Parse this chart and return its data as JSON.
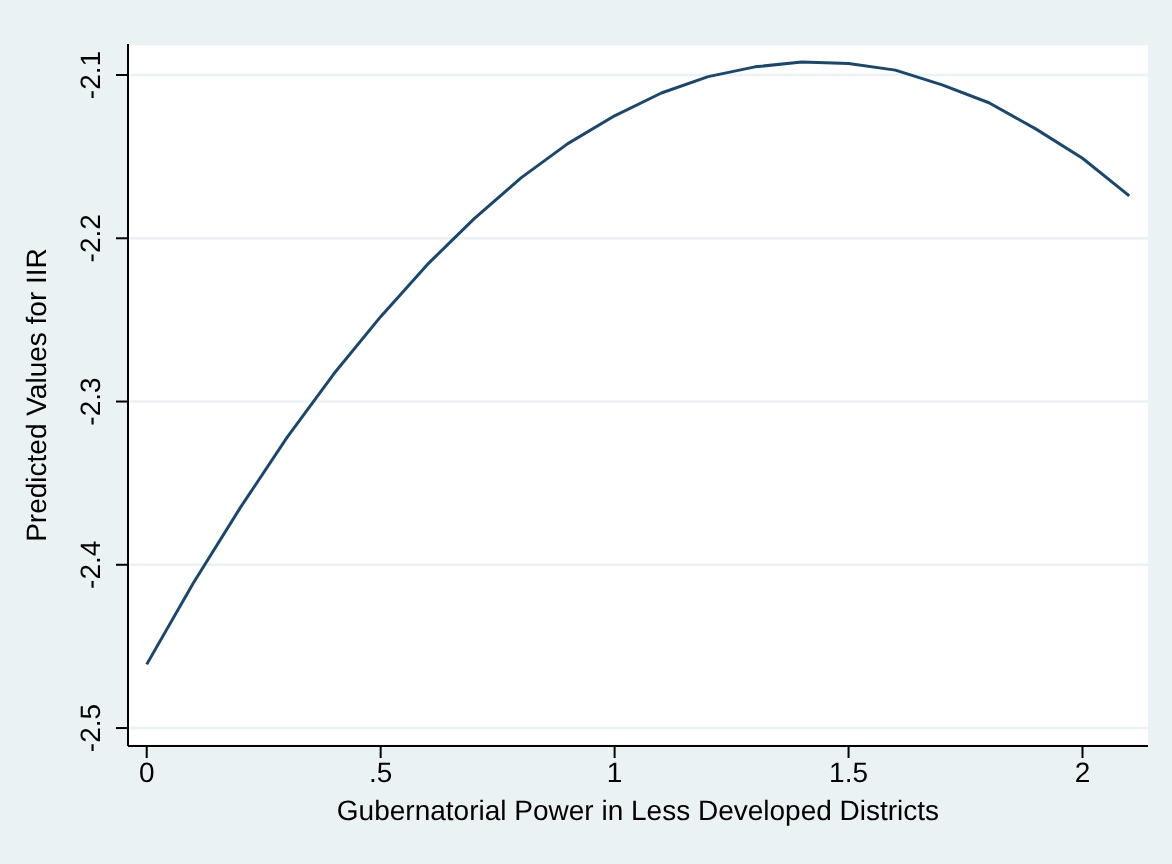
{
  "chart_data": {
    "type": "line",
    "xlabel": "Gubernatorial Power in Less Developed Districts",
    "ylabel": "Predicted Values for IIR",
    "x": [
      0,
      0.1,
      0.2,
      0.3,
      0.4,
      0.5,
      0.6,
      0.7,
      0.8,
      0.9,
      1.0,
      1.1,
      1.2,
      1.3,
      1.4,
      1.5,
      1.6,
      1.7,
      1.8,
      1.9,
      2.0,
      2.1
    ],
    "values": [
      -2.461,
      -2.411,
      -2.365,
      -2.322,
      -2.283,
      -2.248,
      -2.216,
      -2.188,
      -2.163,
      -2.142,
      -2.125,
      -2.111,
      -2.101,
      -2.095,
      -2.092,
      -2.093,
      -2.097,
      -2.106,
      -2.117,
      -2.133,
      -2.151,
      -2.174
    ],
    "color": "#1a476f",
    "xlim": [
      -0.04,
      2.14
    ],
    "ylim": [
      -2.511,
      -2.081
    ],
    "xticks": [
      0,
      {
        "value": 0.5,
        "label": ".5"
      },
      1,
      {
        "value": 1.5,
        "label": "1.5"
      },
      2
    ],
    "yticks": [
      -2.5,
      -2.4,
      -2.3,
      -2.2,
      -2.1
    ],
    "grid": "y"
  }
}
